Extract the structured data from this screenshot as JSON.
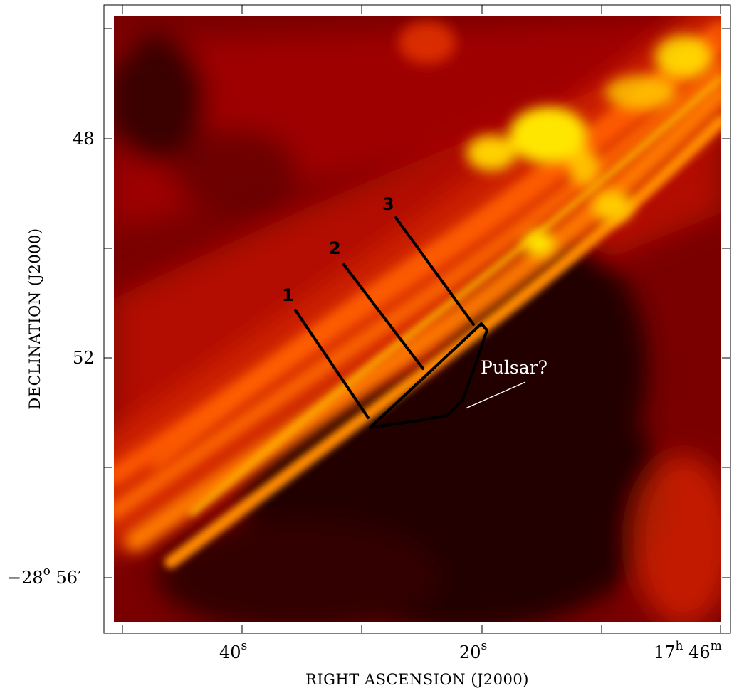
{
  "axes": {
    "x_title": "RIGHT ASCENSION (J2000)",
    "y_title": "DECLINATION (J2000)",
    "x_ticks": [
      {
        "main": "40",
        "sup": "s",
        "tail": ""
      },
      {
        "main": "20",
        "sup": "s",
        "tail": ""
      },
      {
        "main": "17",
        "sup": "h",
        "tail": " 46",
        "sup2": "m"
      }
    ],
    "y_ticks": [
      {
        "main": "48",
        "sup": "",
        "tail": ""
      },
      {
        "main": "52",
        "sup": "",
        "tail": ""
      },
      {
        "main": "−28",
        "sup": "o",
        "tail": " 56′"
      }
    ]
  },
  "cuts": [
    {
      "label": "1"
    },
    {
      "label": "2"
    },
    {
      "label": "3"
    }
  ],
  "annotation": {
    "text": "Pulsar?"
  },
  "colors": {
    "colormap": [
      "#1a0000",
      "#3d0000",
      "#6b0000",
      "#a30000",
      "#d41a00",
      "#ff4a00",
      "#ff8a00",
      "#ffc200",
      "#ffff60"
    ],
    "lines": "#000000",
    "annotation": "#ffffff"
  }
}
